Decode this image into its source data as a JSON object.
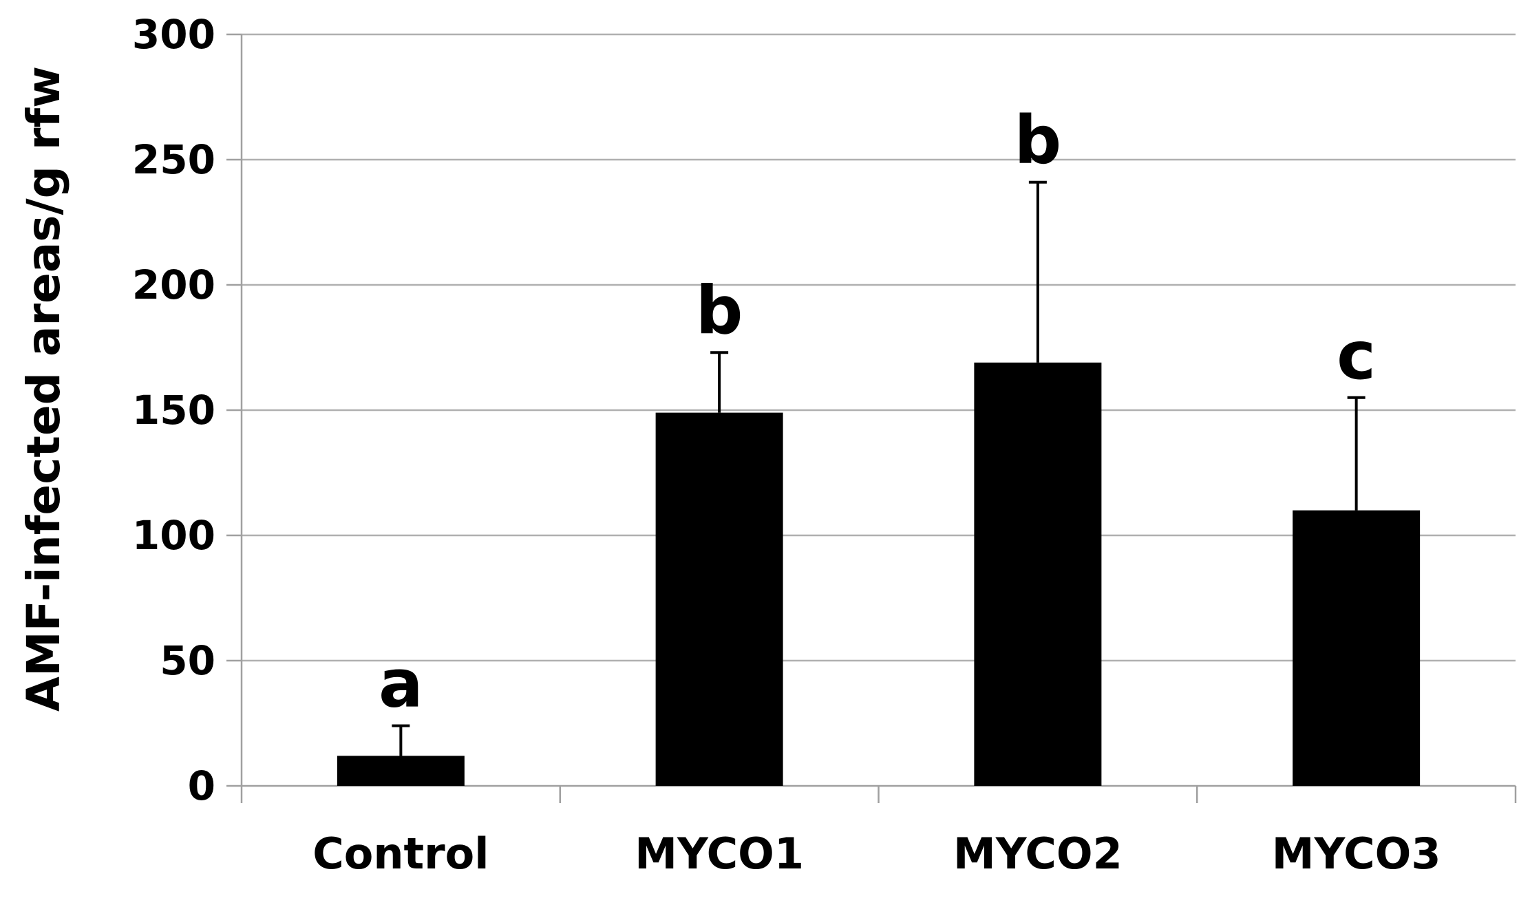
{
  "chart_data": {
    "type": "bar",
    "title": "",
    "xlabel": "",
    "ylabel": "AMF-infected areas/g rfw",
    "ylim": [
      0,
      300
    ],
    "yticks": [
      0,
      50,
      100,
      150,
      200,
      250,
      300
    ],
    "ytick_labels": [
      "0",
      "50",
      "100",
      "150",
      "200",
      "250",
      "300"
    ],
    "grid": true,
    "legend": "none",
    "categories": [
      "Control",
      "MYCO1",
      "MYCO2",
      "MYCO3"
    ],
    "values": [
      12,
      149,
      169,
      110
    ],
    "error_bars": [
      12,
      24,
      72,
      45
    ],
    "significance_letters": [
      "a",
      "b",
      "b",
      "c"
    ],
    "colors": {
      "bar": "#000000",
      "grid": "#b0b0b0",
      "axis": "#a0a0a0",
      "text": "#000000",
      "background": "#ffffff"
    }
  }
}
